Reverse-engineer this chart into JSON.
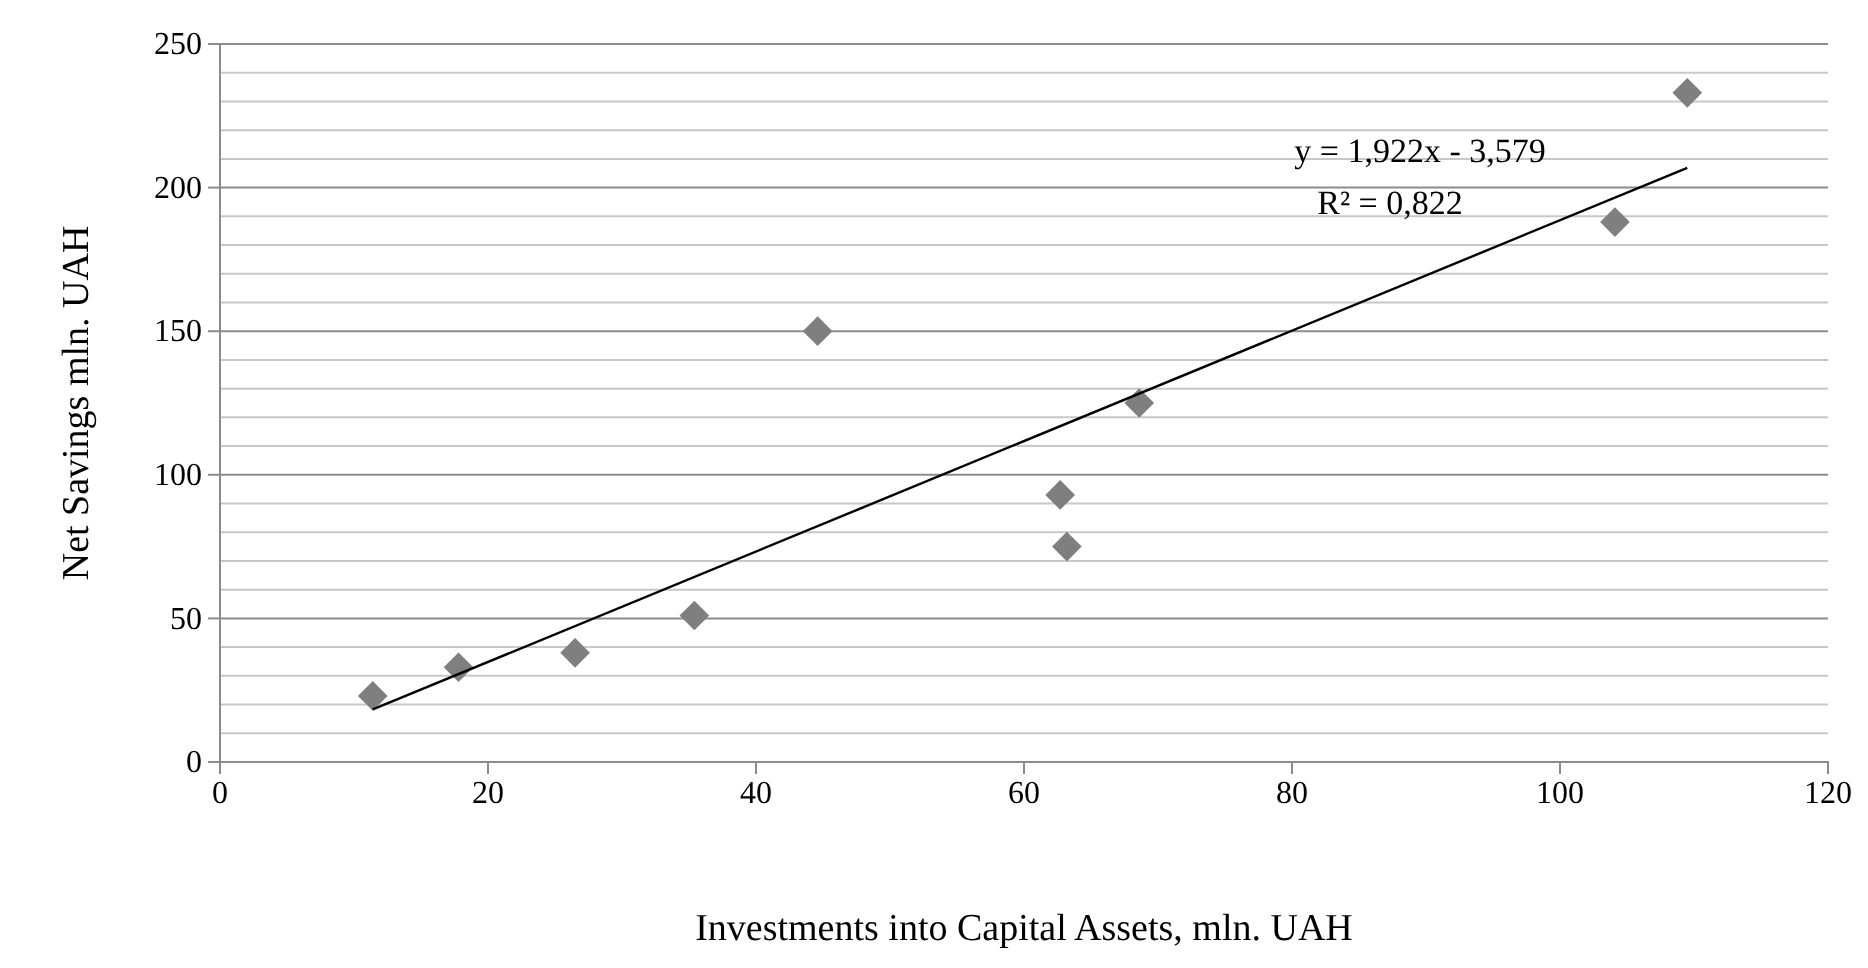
{
  "chart_data": {
    "type": "scatter",
    "xlabel": "Investments into Capital Assets, mln. UAH",
    "ylabel": "Net Savings mln. UAH",
    "annotations": [
      "y = 1,922x - 3,579",
      "R² = 0,822"
    ],
    "series": [
      {
        "color": "#7f7f7f",
        "x": [
          11.4,
          17.8,
          26.5,
          35.4,
          44.6,
          62.7,
          63.2,
          68.6,
          104.1,
          109.5
        ],
        "values": [
          23,
          33,
          38,
          51,
          150,
          93,
          75,
          125,
          188,
          233
        ]
      },
      {
        "type": "line",
        "marker": "none",
        "color": "#000000",
        "x": [
          11.4,
          109.5
        ],
        "values": [
          18.3,
          206.9
        ]
      }
    ],
    "marker": "diamond",
    "xlim": [
      0,
      120
    ],
    "xticks": [
      0,
      20,
      40,
      60,
      80,
      100,
      120
    ],
    "ylim": [
      0,
      250
    ],
    "yticks": [
      0,
      {
        "value": 10,
        "label": null
      },
      {
        "value": 20,
        "label": null
      },
      {
        "value": 30,
        "label": null
      },
      {
        "value": 40,
        "label": null
      },
      50,
      {
        "value": 60,
        "label": null
      },
      {
        "value": 70,
        "label": null
      },
      {
        "value": 80,
        "label": null
      },
      {
        "value": 90,
        "label": null
      },
      100,
      {
        "value": 110,
        "label": null
      },
      {
        "value": 120,
        "label": null
      },
      {
        "value": 130,
        "label": null
      },
      {
        "value": 140,
        "label": null
      },
      150,
      {
        "value": 160,
        "label": null
      },
      {
        "value": 170,
        "label": null
      },
      {
        "value": 180,
        "label": null
      },
      {
        "value": 190,
        "label": null
      },
      200,
      {
        "value": 210,
        "label": null
      },
      {
        "value": 220,
        "label": null
      },
      {
        "value": 230,
        "label": null
      },
      {
        "value": 240,
        "label": null
      },
      250
    ],
    "grid": "y"
  }
}
